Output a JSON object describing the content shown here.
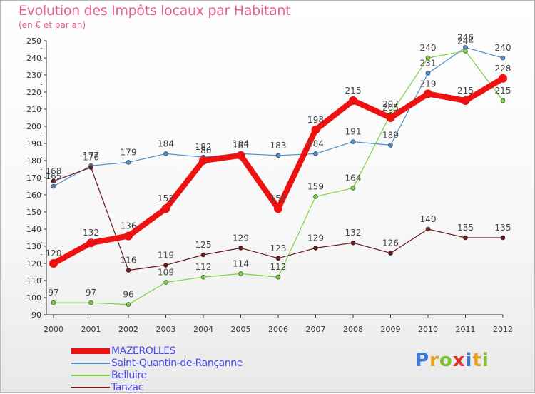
{
  "page": {
    "title": "Evolution des Impôts locaux par Habitant",
    "subtitle": "(en € et par an)"
  },
  "logo": {
    "text": "Proxiti"
  },
  "chart_data": {
    "type": "line",
    "title": "Evolution des Impôts locaux par Habitant",
    "subtitle": "(en € et par an)",
    "x": [
      "2000",
      "2001",
      "2002",
      "2003",
      "2004",
      "2005",
      "2006",
      "2007",
      "2008",
      "2009",
      "2010",
      "2011",
      "2012"
    ],
    "ylim": [
      90,
      250
    ],
    "ytick_step": 10,
    "grid": false,
    "legend_position": "bottom-left",
    "series": [
      {
        "name": "MAZEROLLES",
        "color": "#ee1111",
        "values": [
          120,
          132,
          136,
          152,
          180,
          183,
          152,
          198,
          215,
          205,
          219,
          215,
          228
        ]
      },
      {
        "name": "Saint-Quantin-de-Rançanne",
        "color": "#4a90d0",
        "values": [
          165,
          177,
          179,
          184,
          182,
          184,
          183,
          184,
          191,
          189,
          231,
          246,
          240
        ]
      },
      {
        "name": "Belluire",
        "color": "#7dd040",
        "values": [
          97,
          97,
          96,
          109,
          112,
          114,
          112,
          159,
          164,
          207,
          240,
          244,
          215
        ]
      },
      {
        "name": "Tanzac",
        "color": "#6a1a1a",
        "values": [
          168,
          176,
          116,
          119,
          125,
          129,
          123,
          129,
          132,
          126,
          140,
          135,
          135
        ]
      }
    ]
  }
}
